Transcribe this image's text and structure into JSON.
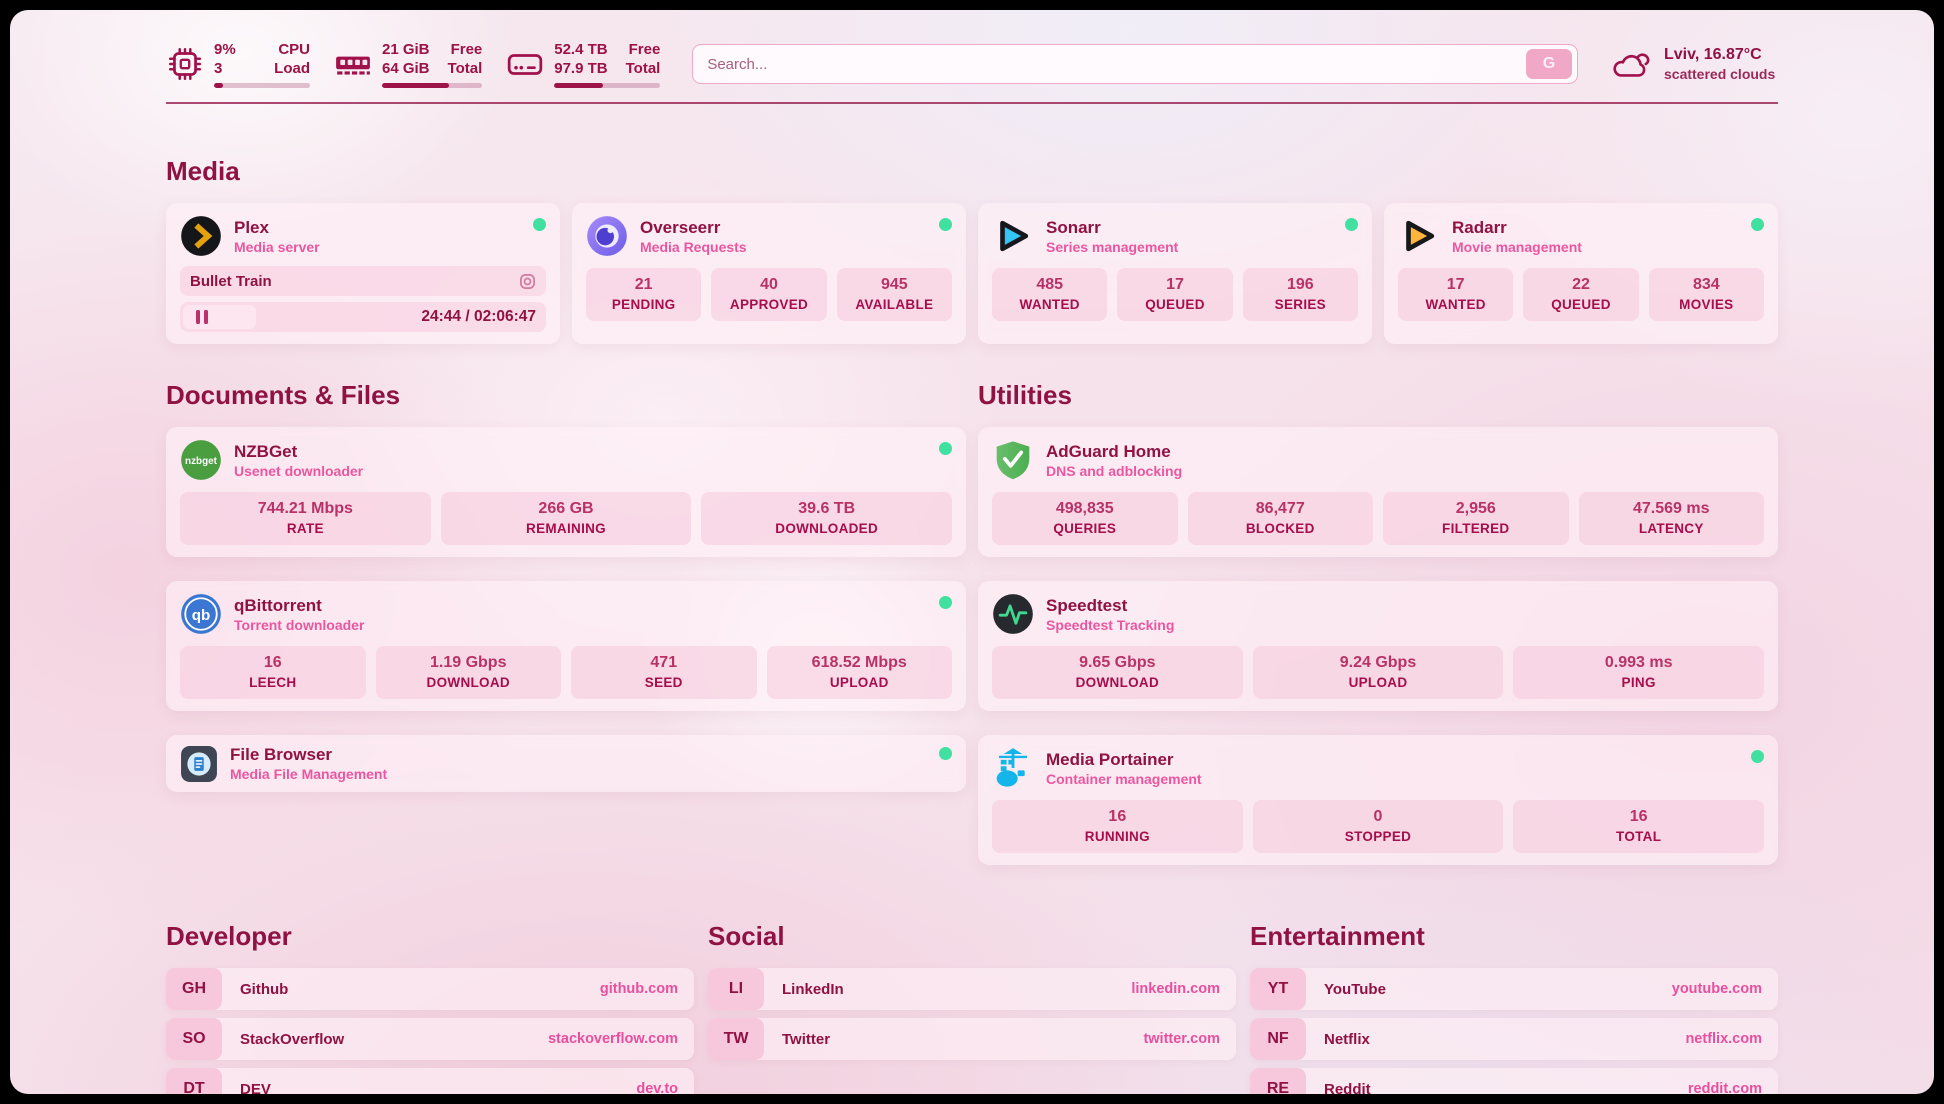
{
  "topbar": {
    "cpu": {
      "line1": "9%",
      "line2": "3",
      "label1": "CPU",
      "label2": "Load",
      "progress_pct": 9
    },
    "memory": {
      "line1": "21 GiB",
      "line2": "64 GiB",
      "label1": "Free",
      "label2": "Total",
      "progress_pct": 67
    },
    "disk": {
      "line1": "52.4 TB",
      "line2": "97.9 TB",
      "label1": "Free",
      "label2": "Total",
      "progress_pct": 46
    },
    "search": {
      "placeholder": "Search...",
      "button_label": "G"
    },
    "weather": {
      "location": "Lviv, 16.87°C",
      "condition": "scattered clouds"
    }
  },
  "media": {
    "title": "Media",
    "plex": {
      "name": "Plex",
      "desc": "Media server",
      "now_playing": "Bullet Train",
      "time": "24:44 / 02:06:47",
      "progress_pct": 20
    },
    "overseerr": {
      "name": "Overseerr",
      "desc": "Media Requests",
      "stats": [
        {
          "value": "21",
          "label": "PENDING"
        },
        {
          "value": "40",
          "label": "APPROVED"
        },
        {
          "value": "945",
          "label": "AVAILABLE"
        }
      ]
    },
    "sonarr": {
      "name": "Sonarr",
      "desc": "Series management",
      "stats": [
        {
          "value": "485",
          "label": "WANTED"
        },
        {
          "value": "17",
          "label": "QUEUED"
        },
        {
          "value": "196",
          "label": "SERIES"
        }
      ]
    },
    "radarr": {
      "name": "Radarr",
      "desc": "Movie management",
      "stats": [
        {
          "value": "17",
          "label": "WANTED"
        },
        {
          "value": "22",
          "label": "QUEUED"
        },
        {
          "value": "834",
          "label": "MOVIES"
        }
      ]
    }
  },
  "documents": {
    "title": "Documents & Files",
    "nzbget": {
      "name": "NZBGet",
      "desc": "Usenet downloader",
      "icon_text": "nzbget",
      "stats": [
        {
          "value": "744.21 Mbps",
          "label": "RATE"
        },
        {
          "value": "266 GB",
          "label": "REMAINING"
        },
        {
          "value": "39.6 TB",
          "label": "DOWNLOADED"
        }
      ]
    },
    "qbittorrent": {
      "name": "qBittorrent",
      "desc": "Torrent downloader",
      "icon_text": "qb",
      "stats": [
        {
          "value": "16",
          "label": "LEECH"
        },
        {
          "value": "1.19 Gbps",
          "label": "DOWNLOAD"
        },
        {
          "value": "471",
          "label": "SEED"
        },
        {
          "value": "618.52 Mbps",
          "label": "UPLOAD"
        }
      ]
    },
    "filebrowser": {
      "name": "File Browser",
      "desc": "Media File Management"
    }
  },
  "utilities": {
    "title": "Utilities",
    "adguard": {
      "name": "AdGuard Home",
      "desc": "DNS and adblocking",
      "stats": [
        {
          "value": "498,835",
          "label": "QUERIES"
        },
        {
          "value": "86,477",
          "label": "BLOCKED"
        },
        {
          "value": "2,956",
          "label": "FILTERED"
        },
        {
          "value": "47.569 ms",
          "label": "LATENCY"
        }
      ]
    },
    "speedtest": {
      "name": "Speedtest",
      "desc": "Speedtest Tracking",
      "stats": [
        {
          "value": "9.65 Gbps",
          "label": "DOWNLOAD"
        },
        {
          "value": "9.24 Gbps",
          "label": "UPLOAD"
        },
        {
          "value": "0.993 ms",
          "label": "PING"
        }
      ]
    },
    "portainer": {
      "name": "Media Portainer",
      "desc": "Container management",
      "stats": [
        {
          "value": "16",
          "label": "RUNNING"
        },
        {
          "value": "0",
          "label": "STOPPED"
        },
        {
          "value": "16",
          "label": "TOTAL"
        }
      ]
    }
  },
  "developer": {
    "title": "Developer",
    "links": [
      {
        "abbr": "GH",
        "name": "Github",
        "url": "github.com"
      },
      {
        "abbr": "SO",
        "name": "StackOverflow",
        "url": "stackoverflow.com"
      },
      {
        "abbr": "DT",
        "name": "DEV",
        "url": "dev.to"
      }
    ]
  },
  "social": {
    "title": "Social",
    "links": [
      {
        "abbr": "LI",
        "name": "LinkedIn",
        "url": "linkedin.com"
      },
      {
        "abbr": "TW",
        "name": "Twitter",
        "url": "twitter.com"
      }
    ]
  },
  "entertainment": {
    "title": "Entertainment",
    "links": [
      {
        "abbr": "YT",
        "name": "YouTube",
        "url": "youtube.com"
      },
      {
        "abbr": "NF",
        "name": "Netflix",
        "url": "netflix.com"
      },
      {
        "abbr": "RE",
        "name": "Reddit",
        "url": "reddit.com"
      }
    ]
  },
  "colors": {
    "accent": "#8f1243",
    "status_green": "#3fe0a0",
    "link_pink": "#e84f9e"
  }
}
